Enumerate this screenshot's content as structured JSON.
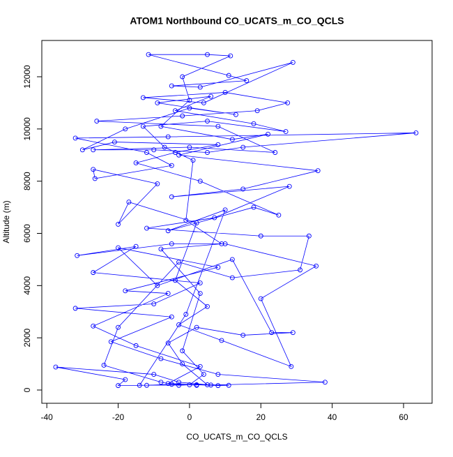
{
  "chart_data": {
    "type": "line",
    "title": "ATOM1 Northbound CO_UCATS_m_CO_QCLS",
    "xlabel": "CO_UCATS_m_CO_QCLS",
    "ylabel": "Altitude (m)",
    "color": "#0000ff",
    "marker": "open-circle",
    "xlim": [
      -41.4,
      68
    ],
    "ylim": [
      -508,
      13390
    ],
    "xticks": [
      -40,
      -20,
      0,
      20,
      40,
      60
    ],
    "yticks": [
      0,
      2000,
      4000,
      6000,
      8000,
      10000,
      12000
    ],
    "x": [
      2,
      -5,
      -12,
      -20,
      -18,
      -37.5,
      -10,
      -3,
      6,
      38,
      8,
      -8,
      -22,
      -5,
      -32,
      -10,
      3,
      -27,
      -15,
      -31.5,
      -5,
      10,
      35.5,
      20,
      28.5,
      9,
      -3,
      5,
      -4,
      2,
      -17,
      -20,
      -9,
      -27,
      -26.5,
      -5,
      -12,
      -32,
      -6,
      63.5,
      15,
      5,
      -10,
      -27,
      0,
      24,
      8,
      -26,
      -2,
      19,
      27.5,
      10,
      -13,
      4,
      29,
      3,
      -5,
      16,
      11,
      -11.5,
      5,
      11.5,
      -2,
      0,
      -8,
      12,
      22,
      -3,
      36,
      15,
      -5,
      28,
      7,
      -12,
      20,
      33.5,
      31,
      12,
      -3,
      -20,
      -24,
      -8,
      -3,
      2,
      8,
      11,
      -6,
      3,
      -15,
      -27,
      -6,
      -18,
      8,
      -20,
      -9,
      12,
      23,
      29,
      15,
      2,
      -6,
      -2,
      5,
      -14,
      -1,
      10,
      -6,
      18,
      25,
      3,
      -15,
      -4,
      8,
      -21,
      -30,
      -18,
      0,
      13,
      -9,
      6,
      -4,
      18,
      27,
      5,
      -13,
      -7,
      1,
      -1,
      9,
      -8,
      3,
      -2,
      4,
      0
    ],
    "y": [
      180,
      220,
      180,
      170,
      400,
      880,
      600,
      300,
      190,
      300,
      600,
      1200,
      1850,
      2800,
      3130,
      3300,
      4100,
      4500,
      5500,
      5150,
      5600,
      5600,
      4750,
      3500,
      900,
      1900,
      2500,
      3200,
      4200,
      6400,
      7200,
      6350,
      7900,
      8450,
      8100,
      8600,
      9100,
      9650,
      9700,
      9850,
      9300,
      9100,
      9200,
      9200,
      9300,
      9100,
      10100,
      10300,
      10500,
      10700,
      11000,
      11400,
      11200,
      11000,
      12550,
      11600,
      11650,
      11850,
      12050,
      12850,
      12850,
      12800,
      12000,
      11100,
      10100,
      9600,
      9800,
      9000,
      8400,
      7700,
      7400,
      7800,
      6600,
      6200,
      5900,
      5900,
      4600,
      4300,
      4900,
      2400,
      950,
      300,
      180,
      200,
      170,
      180,
      250,
      900,
      1700,
      2450,
      3700,
      3800,
      4700,
      5450,
      4000,
      5000,
      2200,
      2200,
      2100,
      2400,
      1800,
      1000,
      200,
      180,
      2900,
      6900,
      6100,
      7000,
      6700,
      8000,
      8700,
      9100,
      9400,
      9500,
      9200,
      10000,
      10800,
      10550,
      11000,
      11250,
      10700,
      10200,
      9900,
      10300,
      10100,
      9300,
      8800,
      6500,
      5600,
      5400,
      3700,
      1500,
      600,
      200
    ]
  }
}
